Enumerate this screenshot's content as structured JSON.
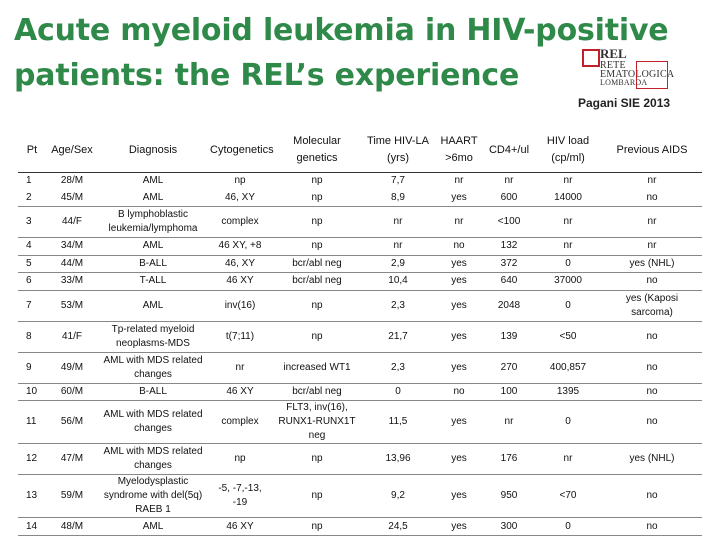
{
  "slide": {
    "title_line1": "Acute myeloid leukemia in HIV-positive",
    "title_line2": "patients: the REL’s experience",
    "source": "Pagani SIE 2013",
    "logo": {
      "main": "REL",
      "line1": "RETE",
      "line2": "EMATOLOGICA",
      "line3": "LOMBARDA"
    }
  },
  "table": {
    "headers": [
      "Pt",
      "Age/Sex",
      "Diagnosis",
      "Cytogenetics",
      "Molecular genetics",
      "Time HIV-LA (yrs)",
      "HAART >6mo",
      "CD4+/ul",
      "HIV load (cp/ml)",
      "Previous AIDS"
    ],
    "rows": [
      [
        "1",
        "28/M",
        "AML",
        "np",
        "np",
        "7,7",
        "nr",
        "nr",
        "nr",
        "nr"
      ],
      [
        "2",
        "45/M",
        "AML",
        "46, XY",
        "np",
        "8,9",
        "yes",
        "600",
        "14000",
        "no"
      ],
      [
        "3",
        "44/F",
        "B lymphoblastic leukemia/lymphoma",
        "complex",
        "np",
        "nr",
        "nr",
        "<100",
        "nr",
        "nr"
      ],
      [
        "4",
        "34/M",
        "AML",
        "46 XY, +8",
        "np",
        "nr",
        "no",
        "132",
        "nr",
        "nr"
      ],
      [
        "5",
        "44/M",
        "B-ALL",
        "46, XY",
        "bcr/abl neg",
        "2,9",
        "yes",
        "372",
        "0",
        "yes (NHL)"
      ],
      [
        "6",
        "33/M",
        "T-ALL",
        "46 XY",
        "bcr/abl neg",
        "10,4",
        "yes",
        "640",
        "37000",
        "no"
      ],
      [
        "7",
        "53/M",
        "AML",
        "inv(16)",
        "np",
        "2,3",
        "yes",
        "2048",
        "0",
        "yes (Kaposi sarcoma)"
      ],
      [
        "8",
        "41/F",
        "Tp-related myeloid neoplasms-MDS",
        "t(7;11)",
        "np",
        "21,7",
        "yes",
        "139",
        "<50",
        "no"
      ],
      [
        "9",
        "49/M",
        "AML with MDS related changes",
        "nr",
        "increased WT1",
        "2,3",
        "yes",
        "270",
        "400,857",
        "no"
      ],
      [
        "10",
        "60/M",
        "B-ALL",
        "46 XY",
        "bcr/abl neg",
        "0",
        "no",
        "100",
        "1395",
        "no"
      ],
      [
        "11",
        "56/M",
        "AML with MDS related changes",
        "complex",
        "FLT3, inv(16), RUNX1-RUNX1T neg",
        "11,5",
        "yes",
        "nr",
        "0",
        "no"
      ],
      [
        "12",
        "47/M",
        "AML with MDS related changes",
        "np",
        "np",
        "13,96",
        "yes",
        "176",
        "nr",
        "yes (NHL)"
      ],
      [
        "13",
        "59/M",
        "Myelodysplastic syndrome with del(5q) RAEB 1",
        "-5, -7,-13, -19",
        "np",
        "9,2",
        "yes",
        "950",
        "<70",
        "no"
      ],
      [
        "14",
        "48/M",
        "AML",
        "46 XY",
        "np",
        "24,5",
        "yes",
        "300",
        "0",
        "no"
      ]
    ]
  }
}
